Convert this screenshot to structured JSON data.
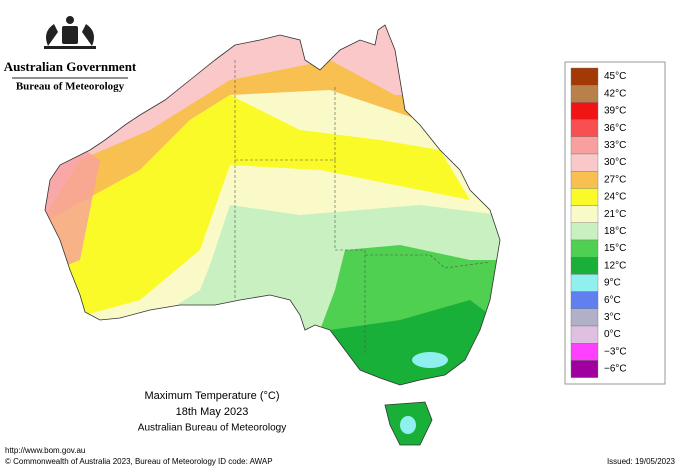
{
  "header": {
    "title": "Australian Government",
    "subtitle": "Bureau of Meteorology"
  },
  "legend": [
    {
      "label": "45°C",
      "color": "#a33a06"
    },
    {
      "label": "42°C",
      "color": "#b8804a"
    },
    {
      "label": "39°C",
      "color": "#f01414"
    },
    {
      "label": "36°C",
      "color": "#f85050"
    },
    {
      "label": "33°C",
      "color": "#f8a0a0"
    },
    {
      "label": "30°C",
      "color": "#fac8c8"
    },
    {
      "label": "27°C",
      "color": "#f8c050"
    },
    {
      "label": "24°C",
      "color": "#fafa28"
    },
    {
      "label": "21°C",
      "color": "#fafac8"
    },
    {
      "label": "18°C",
      "color": "#c8f0c0"
    },
    {
      "label": "15°C",
      "color": "#50d050"
    },
    {
      "label": "12°C",
      "color": "#18b038"
    },
    {
      "label": "9°C",
      "color": "#90f0f0"
    },
    {
      "label": "6°C",
      "color": "#6080f0"
    },
    {
      "label": "3°C",
      "color": "#b0b0c8"
    },
    {
      "label": "0°C",
      "color": "#e0c0e0"
    },
    {
      "label": "−3°C",
      "color": "#ff40ff"
    },
    {
      "label": "−6°C",
      "color": "#a000a0"
    }
  ],
  "caption": {
    "title": "Maximum Temperature (°C)",
    "date": "18th May 2023",
    "source": "Australian Bureau of Meteorology"
  },
  "footer": {
    "url": "http://www.bom.gov.au",
    "copyright": "© Commonwealth of Australia 2023, Bureau of Meteorology",
    "id_code": "ID code: AWAP",
    "issued": "Issued: 19/05/2023"
  }
}
